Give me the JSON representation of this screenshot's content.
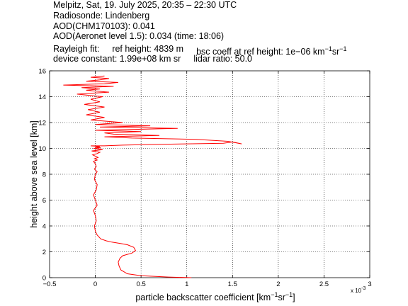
{
  "header": {
    "title": "Melpitz, Sat, 19. July 2025, 20:35 – 22:30 UTC",
    "radiosonde": "Radiosonde: Lindenberg",
    "aod_chm": "AOD(CHM170103): 0.041",
    "aod_aeronet": "AOD(Aeronet level 1.5): 0.034   (time: 18:06)",
    "rayleigh_label": "Rayleigh fit:",
    "ref_height": "ref height: 4839 m",
    "bsc_coeff_prefix": "bsc coeff at ref height: 1e−06 km",
    "device_constant": "device constant: 1.99e+08 km sr",
    "lidar_ratio": "lidar ratio: 50.0"
  },
  "chart_data": {
    "type": "line",
    "xlabel_main": "particle backscatter coefficient [km",
    "ylabel": "height above sea level [km]",
    "x_multiplier": "x 10",
    "x_multiplier_exp": "-3",
    "xlim": [
      -0.5,
      3.0
    ],
    "ylim": [
      0,
      16
    ],
    "xticks": [
      "−0.5",
      "0",
      "0.5",
      "1",
      "1.5",
      "2",
      "2.5",
      "3"
    ],
    "yticks": [
      "0",
      "2",
      "4",
      "6",
      "8",
      "10",
      "12",
      "14",
      "16"
    ],
    "grid": true,
    "line_color": "#ff0000",
    "series": [
      {
        "x": [
          1.05,
          0.8,
          0.5,
          0.35,
          0.28,
          0.26,
          0.25,
          0.27,
          0.3,
          0.4,
          0.44,
          0.42,
          0.35,
          0.27,
          0.18,
          0.12,
          0.06,
          0.02,
          0.0,
          -0.01,
          0.01,
          0.0,
          -0.02,
          0.02,
          0.0,
          -0.02,
          0.01,
          0.02,
          -0.01,
          0.0,
          0.02,
          -0.01,
          0.01,
          0.0,
          -0.02,
          0.02,
          -0.01,
          0.03,
          0.0,
          -0.03,
          0.02,
          0.05,
          -0.04,
          0.08,
          -0.02,
          0.06,
          0.0,
          0.05,
          -0.05,
          0.1,
          0.3,
          0.6,
          1.0,
          1.4,
          1.5,
          1.6,
          1.45,
          1.1,
          0.4,
          0.1,
          0.7,
          0.2,
          0.1,
          0.5,
          0.0,
          0.9,
          0.05,
          0.6,
          0.0,
          0.3,
          -0.05,
          0.1,
          -0.1,
          0.05,
          -0.08,
          0.1,
          -0.12,
          0.05,
          -0.05,
          0.08,
          -0.2,
          0.15,
          -0.1,
          0.05,
          -0.15,
          0.2,
          -0.35,
          0.1,
          0.25,
          -0.1,
          0.05,
          0.15,
          -0.05,
          0.1
        ],
        "y": [
          0.0,
          0.05,
          0.15,
          0.3,
          0.6,
          0.9,
          1.2,
          1.5,
          1.7,
          1.9,
          2.1,
          2.35,
          2.55,
          2.65,
          2.75,
          2.85,
          3.0,
          3.3,
          3.6,
          4.0,
          4.4,
          4.8,
          5.2,
          5.6,
          6.0,
          6.4,
          6.8,
          7.2,
          7.6,
          8.0,
          8.2,
          8.4,
          8.6,
          8.8,
          9.0,
          9.1,
          9.2,
          9.3,
          9.4,
          9.5,
          9.6,
          9.7,
          9.8,
          9.9,
          10.0,
          10.05,
          10.1,
          10.15,
          10.2,
          10.2,
          10.25,
          10.3,
          10.35,
          10.4,
          10.5,
          10.35,
          10.55,
          10.7,
          10.8,
          10.9,
          11.0,
          11.1,
          11.2,
          11.3,
          11.4,
          11.55,
          11.65,
          11.75,
          11.85,
          12.0,
          12.2,
          12.4,
          12.6,
          12.8,
          13.0,
          13.2,
          13.4,
          13.6,
          13.8,
          14.0,
          14.2,
          14.35,
          14.5,
          14.6,
          14.7,
          14.8,
          14.9,
          15.0,
          15.1,
          15.2,
          15.3,
          15.4,
          15.5,
          15.6
        ]
      }
    ]
  }
}
